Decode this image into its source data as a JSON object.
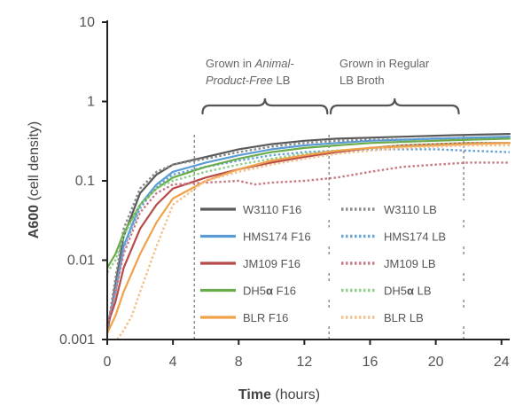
{
  "chart_data": {
    "type": "line",
    "xlabel": {
      "bold": "Time",
      "rest": " (hours)"
    },
    "ylabel": {
      "bold": "A600",
      "rest": " (cell density)"
    },
    "x_scale": "linear",
    "y_scale": "log",
    "xlim": [
      0,
      24.5
    ],
    "ylim": [
      0.001,
      10
    ],
    "xticks": [
      "0",
      "4",
      "8",
      "12",
      "16",
      "20",
      "24"
    ],
    "xtick_values": [
      0,
      4,
      8,
      12,
      16,
      20,
      24
    ],
    "yticks": [
      "0.001",
      "0.01",
      "0.1",
      "1",
      "10"
    ],
    "ytick_values": [
      0.001,
      0.01,
      0.1,
      1,
      10
    ],
    "vlines": [
      5.3,
      13.5,
      21.7
    ],
    "annotations": [
      {
        "lines": [
          "Grown in Animal-",
          "Product-Free LB"
        ],
        "italic_words": [
          "Animal-",
          "Product-Free"
        ],
        "brace_from": 5.8,
        "brace_to": 13.4
      },
      {
        "lines": [
          "Grown in Regular",
          "LB Broth"
        ],
        "italic_words": [],
        "brace_from": 13.6,
        "brace_to": 21.4
      }
    ],
    "legend_position": "center",
    "series": [
      {
        "name": "W3110 F16",
        "color": "#5a5a5a",
        "dash": "solid",
        "x": [
          0,
          0.5,
          1,
          2,
          3,
          4,
          6,
          8,
          10,
          12,
          14,
          16,
          18,
          20,
          22,
          24.5
        ],
        "y": [
          0.0012,
          0.005,
          0.02,
          0.07,
          0.12,
          0.16,
          0.2,
          0.25,
          0.29,
          0.32,
          0.34,
          0.35,
          0.36,
          0.37,
          0.38,
          0.39
        ]
      },
      {
        "name": "W3110 LB",
        "color": "#8a8a8a",
        "dash": "dotted",
        "x": [
          0,
          0.5,
          1,
          2,
          3,
          4,
          6,
          8,
          10,
          12,
          14,
          16,
          18,
          20,
          22,
          24.5
        ],
        "y": [
          0.0013,
          0.006,
          0.025,
          0.08,
          0.13,
          0.16,
          0.19,
          0.23,
          0.27,
          0.3,
          0.32,
          0.33,
          0.33,
          0.34,
          0.34,
          0.35
        ]
      },
      {
        "name": "HMS174 F16",
        "color": "#5b9bd5",
        "dash": "solid",
        "x": [
          0,
          0.5,
          1,
          2,
          3,
          4,
          6,
          8,
          10,
          12,
          14,
          16,
          18,
          20,
          22,
          24.5
        ],
        "y": [
          0.0015,
          0.004,
          0.015,
          0.05,
          0.09,
          0.13,
          0.17,
          0.21,
          0.25,
          0.28,
          0.3,
          0.32,
          0.33,
          0.34,
          0.35,
          0.36
        ]
      },
      {
        "name": "HMS174 LB",
        "color": "#6aa5d8",
        "dash": "dotted",
        "x": [
          0,
          0.5,
          1,
          2,
          3,
          4,
          6,
          8,
          10,
          12,
          14,
          16,
          18,
          20,
          22,
          24.5
        ],
        "y": [
          0.0014,
          0.004,
          0.014,
          0.045,
          0.085,
          0.12,
          0.15,
          0.18,
          0.21,
          0.23,
          0.24,
          0.25,
          0.25,
          0.25,
          0.24,
          0.23
        ]
      },
      {
        "name": "JM109 F16",
        "color": "#b84a4a",
        "dash": "solid",
        "x": [
          0,
          0.5,
          1,
          2,
          3,
          4,
          6,
          8,
          10,
          12,
          14,
          16,
          18,
          20,
          22,
          24.5
        ],
        "y": [
          0.0015,
          0.003,
          0.008,
          0.025,
          0.05,
          0.08,
          0.11,
          0.14,
          0.17,
          0.2,
          0.23,
          0.26,
          0.28,
          0.29,
          0.3,
          0.3
        ]
      },
      {
        "name": "JM109 LB",
        "color": "#c97a84",
        "dash": "dotted",
        "x": [
          0,
          0.5,
          1,
          2,
          3,
          4,
          6,
          8,
          9,
          10,
          12,
          14,
          16,
          18,
          20,
          22,
          24.5
        ],
        "y": [
          0.0015,
          0.004,
          0.012,
          0.04,
          0.07,
          0.09,
          0.095,
          0.1,
          0.09,
          0.095,
          0.1,
          0.11,
          0.13,
          0.15,
          0.16,
          0.17,
          0.17
        ]
      },
      {
        "name": "DH5α F16",
        "color": "#6aab4a",
        "dash": "solid",
        "x": [
          0,
          0.5,
          1,
          2,
          3,
          4,
          6,
          8,
          10,
          12,
          14,
          16,
          18,
          20,
          22,
          24.5
        ],
        "y": [
          0.008,
          0.012,
          0.022,
          0.05,
          0.08,
          0.11,
          0.15,
          0.19,
          0.23,
          0.26,
          0.28,
          0.3,
          0.31,
          0.32,
          0.33,
          0.34
        ]
      },
      {
        "name": "DH5α LB",
        "color": "#8fcf8a",
        "dash": "dotted",
        "x": [
          0,
          0.5,
          1,
          2,
          3,
          4,
          6,
          8,
          10,
          12,
          14,
          16,
          18,
          20,
          22,
          24.5
        ],
        "y": [
          0.007,
          0.01,
          0.02,
          0.05,
          0.08,
          0.1,
          0.13,
          0.16,
          0.19,
          0.22,
          0.24,
          0.26,
          0.28,
          0.29,
          0.3,
          0.3
        ]
      },
      {
        "name": "BLR F16",
        "color": "#f0a24a",
        "dash": "solid",
        "x": [
          0,
          0.5,
          1,
          2,
          3,
          4,
          6,
          8,
          10,
          12,
          14,
          16,
          18,
          20,
          22,
          24.5
        ],
        "y": [
          0.0012,
          0.002,
          0.004,
          0.012,
          0.03,
          0.06,
          0.1,
          0.14,
          0.18,
          0.21,
          0.24,
          0.26,
          0.27,
          0.28,
          0.29,
          0.3
        ]
      },
      {
        "name": "BLR LB",
        "color": "#f3c08a",
        "dash": "dotted",
        "x": [
          0.6,
          1,
          1.5,
          2,
          3,
          4,
          6,
          8,
          10,
          12,
          14,
          16,
          18,
          20,
          22,
          24.5
        ],
        "y": [
          0.001,
          0.0013,
          0.002,
          0.004,
          0.015,
          0.05,
          0.1,
          0.13,
          0.16,
          0.19,
          0.22,
          0.24,
          0.26,
          0.27,
          0.28,
          0.28
        ]
      }
    ],
    "legend_order": [
      0,
      1,
      2,
      3,
      4,
      5,
      6,
      7,
      8,
      9
    ]
  }
}
